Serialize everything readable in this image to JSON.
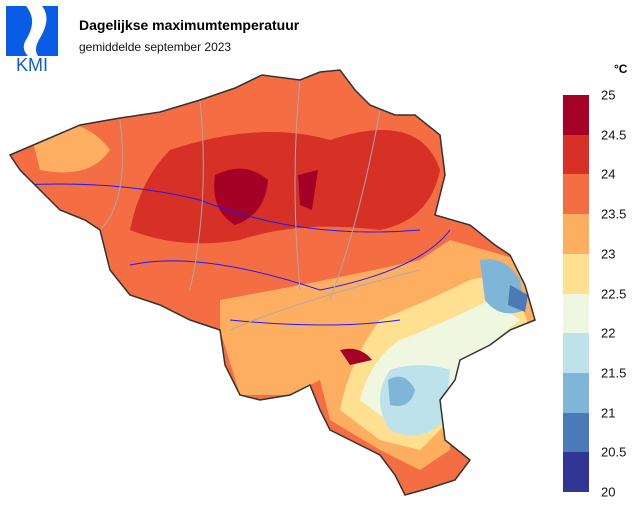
{
  "logo": {
    "text": "KMI",
    "color": "#0a5ce6"
  },
  "title": "Dagelijkse maximumtemperatuur",
  "subtitle": "gemiddelde september 2023",
  "legend": {
    "unit": "°C",
    "labels": [
      "25",
      "24.5",
      "24",
      "23.5",
      "23",
      "22.5",
      "22",
      "21.5",
      "21",
      "20.5",
      "20"
    ],
    "colors": [
      "#a50026",
      "#d73027",
      "#f46d43",
      "#fdae61",
      "#fee090",
      "#f0f7e0",
      "#bde2ec",
      "#7fb5d6",
      "#4a7ab8",
      "#313695"
    ]
  },
  "map": {
    "region": "Belgium",
    "dominant_range": "23.5-24",
    "max_area": "24.5-25",
    "min_area": "20.5-21"
  }
}
